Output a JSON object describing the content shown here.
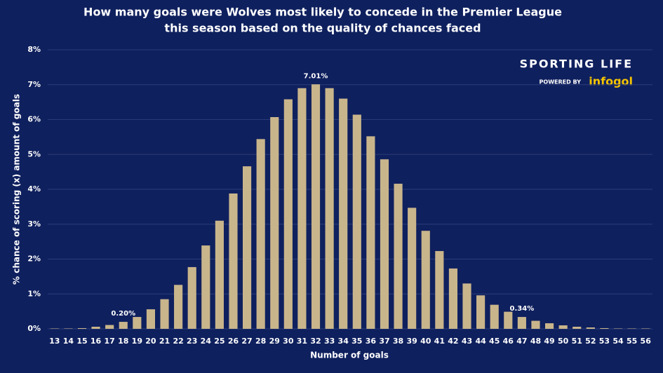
{
  "chart_data": {
    "type": "bar",
    "title": [
      "How many goals were Wolves most likely to concede in the Premier League",
      "this season based on the quality of chances faced"
    ],
    "x_label": "Number of goals",
    "y_label": "% chance of scoring (x) amount of goals",
    "categories": [
      "13",
      "14",
      "15",
      "16",
      "17",
      "18",
      "19",
      "20",
      "21",
      "22",
      "23",
      "24",
      "25",
      "26",
      "27",
      "28",
      "29",
      "30",
      "31",
      "32",
      "33",
      "34",
      "35",
      "36",
      "37",
      "38",
      "39",
      "40",
      "41",
      "42",
      "43",
      "44",
      "45",
      "46",
      "47",
      "48",
      "49",
      "50",
      "51",
      "52",
      "53",
      "54",
      "55",
      "56"
    ],
    "values": [
      0.01,
      0.01,
      0.02,
      0.06,
      0.11,
      0.2,
      0.34,
      0.56,
      0.85,
      1.26,
      1.77,
      2.39,
      3.1,
      3.88,
      4.66,
      5.44,
      6.07,
      6.58,
      6.9,
      7.01,
      6.9,
      6.6,
      6.14,
      5.52,
      4.86,
      4.16,
      3.47,
      2.81,
      2.23,
      1.73,
      1.3,
      0.96,
      0.69,
      0.49,
      0.34,
      0.23,
      0.16,
      0.1,
      0.06,
      0.04,
      0.02,
      0.01,
      0.01,
      0.01
    ],
    "value_labels": [
      null,
      null,
      null,
      null,
      null,
      "0.20%",
      null,
      null,
      null,
      null,
      null,
      null,
      null,
      null,
      null,
      null,
      null,
      null,
      null,
      "7.01%",
      null,
      null,
      null,
      null,
      null,
      null,
      null,
      null,
      null,
      null,
      null,
      null,
      null,
      null,
      "0.34%",
      null,
      null,
      null,
      null,
      null,
      null,
      null,
      null,
      null
    ],
    "color": "#c9b58b",
    "ylim": [
      0,
      8
    ],
    "yticks": [
      {
        "value": 0,
        "label": "0%"
      },
      {
        "value": 1,
        "label": "1%"
      },
      {
        "value": 2,
        "label": "2%"
      },
      {
        "value": 3,
        "label": "3%"
      },
      {
        "value": 4,
        "label": "4%"
      },
      {
        "value": 5,
        "label": "5%"
      },
      {
        "value": 6,
        "label": "6%"
      },
      {
        "value": 7,
        "label": "7%"
      },
      {
        "value": 8,
        "label": "8%"
      }
    ],
    "grid": true
  },
  "logo": {
    "brand": "SPORTING LIFE",
    "powered": "POWERED BY",
    "partner": "infogol"
  }
}
